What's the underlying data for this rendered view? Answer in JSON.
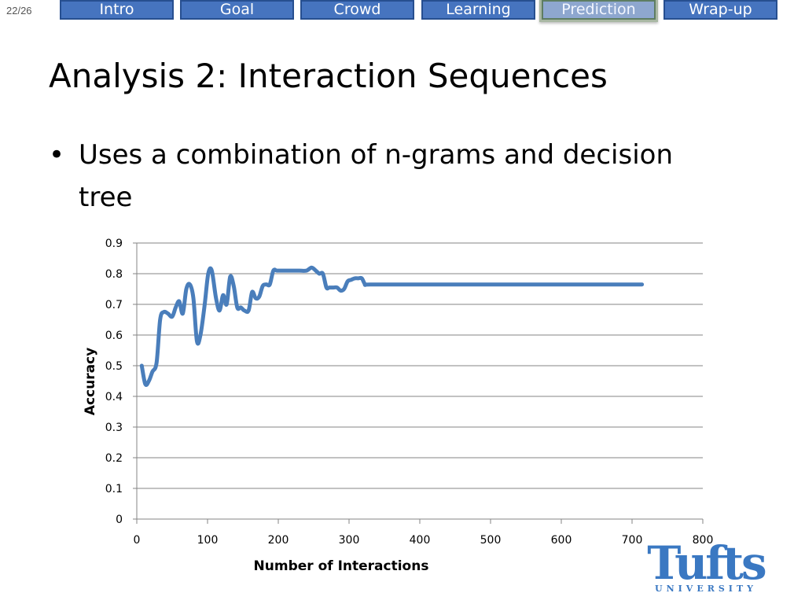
{
  "slide": {
    "page_indicator": "22/26",
    "title": "Analysis 2: Interaction Sequences",
    "bullet": "Uses a combination of n-grams and decision tree"
  },
  "nav": {
    "tabs": [
      {
        "label": "Intro",
        "active": false
      },
      {
        "label": "Goal",
        "active": false
      },
      {
        "label": "Crowd",
        "active": false
      },
      {
        "label": "Learning",
        "active": false
      },
      {
        "label": "Prediction",
        "active": true
      },
      {
        "label": "Wrap-up",
        "active": false
      }
    ]
  },
  "logo": {
    "name": "tufts-university-logo",
    "word": "Tufts",
    "sub": "UNIVERSITY",
    "color": "#3a78c2"
  },
  "chart_data": {
    "type": "line",
    "title": "",
    "xlabel": "Number of Interactions",
    "ylabel": "Accuracy",
    "xlim": [
      0,
      800
    ],
    "ylim": [
      0,
      0.9
    ],
    "xticks": [
      0,
      100,
      200,
      300,
      400,
      500,
      600,
      700,
      800
    ],
    "yticks": [
      0,
      0.1,
      0.2,
      0.3,
      0.4,
      0.5,
      0.6,
      0.7,
      0.8,
      0.9
    ],
    "ytick_labels": [
      "0",
      "0.1",
      "0.2",
      "0.3",
      "0.4",
      "0.5",
      "0.6",
      "0.7",
      "0.8",
      "0.9"
    ],
    "grid": "horizontal",
    "legend": "none",
    "line_color": "#4a7ebb",
    "series": [
      {
        "x": [
          7,
          12,
          17,
          22,
          28,
          33,
          38,
          44,
          50,
          55,
          60,
          65,
          70,
          75,
          80,
          85,
          90,
          96,
          101,
          106,
          112,
          117,
          122,
          127,
          132,
          137,
          142,
          147,
          152,
          158,
          163,
          168,
          173,
          178,
          183,
          188,
          193,
          198,
          204,
          210,
          215,
          220,
          230,
          240,
          247,
          253,
          258,
          263,
          268,
          272,
          278,
          283,
          288,
          293,
          298,
          303,
          308,
          313,
          318,
          323,
          330,
          400,
          500,
          600,
          714
        ],
        "y": [
          0.5,
          0.44,
          0.45,
          0.48,
          0.51,
          0.65,
          0.675,
          0.67,
          0.66,
          0.69,
          0.71,
          0.67,
          0.75,
          0.765,
          0.72,
          0.58,
          0.6,
          0.7,
          0.8,
          0.81,
          0.72,
          0.68,
          0.73,
          0.7,
          0.79,
          0.76,
          0.69,
          0.69,
          0.68,
          0.68,
          0.74,
          0.72,
          0.725,
          0.76,
          0.765,
          0.765,
          0.81,
          0.81,
          0.81,
          0.81,
          0.81,
          0.81,
          0.81,
          0.81,
          0.82,
          0.81,
          0.8,
          0.8,
          0.755,
          0.755,
          0.755,
          0.755,
          0.745,
          0.75,
          0.775,
          0.78,
          0.785,
          0.785,
          0.785,
          0.765,
          0.765,
          0.765,
          0.765,
          0.765,
          0.765
        ]
      }
    ]
  }
}
